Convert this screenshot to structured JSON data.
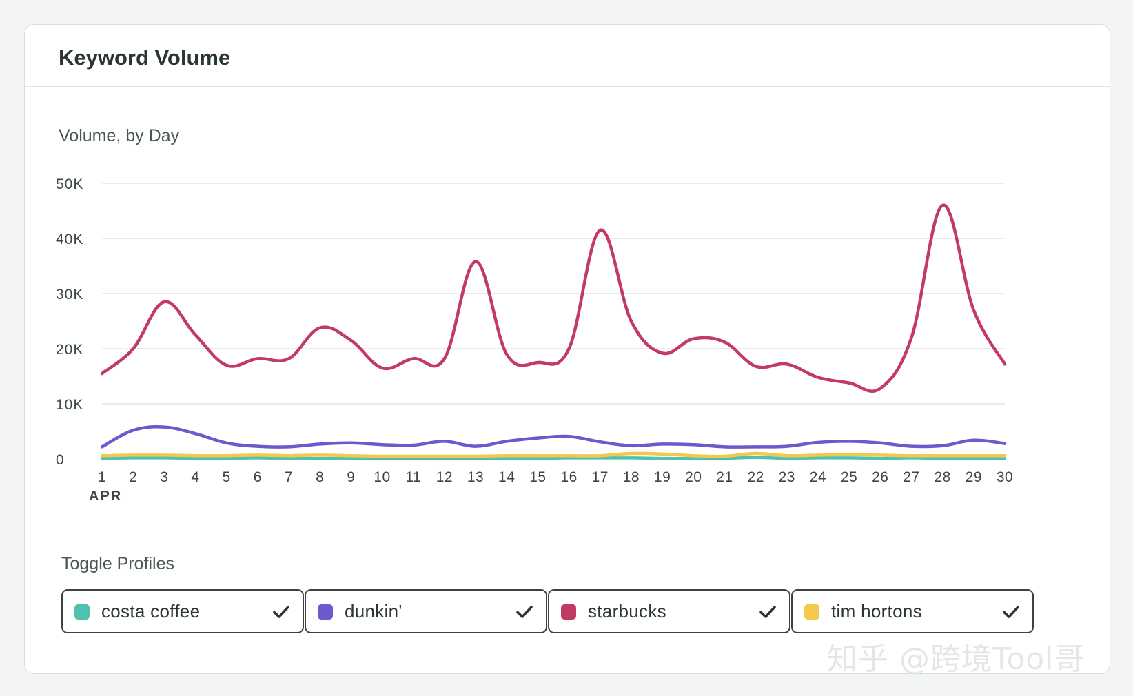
{
  "card": {
    "title": "Keyword Volume"
  },
  "chart_data": {
    "type": "line",
    "subtitle": "Volume, by Day",
    "x": [
      1,
      2,
      3,
      4,
      5,
      6,
      7,
      8,
      9,
      10,
      11,
      12,
      13,
      14,
      15,
      16,
      17,
      18,
      19,
      20,
      21,
      22,
      23,
      24,
      25,
      26,
      27,
      28,
      29,
      30
    ],
    "x_tick_labels": [
      "1",
      "2",
      "3",
      "4",
      "5",
      "6",
      "7",
      "8",
      "9",
      "10",
      "11",
      "12",
      "13",
      "14",
      "15",
      "16",
      "17",
      "18",
      "19",
      "20",
      "21",
      "22",
      "23",
      "24",
      "25",
      "26",
      "27",
      "28",
      "29",
      "30"
    ],
    "x_month_label": "APR",
    "y_ticks": [
      0,
      10000,
      20000,
      30000,
      40000,
      50000
    ],
    "y_tick_labels": [
      "0",
      "10K",
      "20K",
      "30K",
      "40K",
      "50K"
    ],
    "ylim": [
      0,
      50000
    ],
    "grid": true,
    "series": [
      {
        "name": "starbucks",
        "color": "#c23b63",
        "values": [
          15500,
          20000,
          28500,
          22500,
          17000,
          18200,
          18200,
          23800,
          21500,
          16500,
          18200,
          18200,
          35800,
          19000,
          17500,
          20000,
          41500,
          25000,
          19200,
          21800,
          21200,
          16800,
          17200,
          14800,
          13800,
          12800,
          22000,
          46000,
          27000,
          17200
        ]
      },
      {
        "name": "dunkin'",
        "color": "#6a5acd",
        "values": [
          2200,
          5200,
          5800,
          4600,
          2900,
          2300,
          2200,
          2700,
          2900,
          2600,
          2500,
          3200,
          2300,
          3200,
          3800,
          4100,
          3100,
          2400,
          2700,
          2600,
          2200,
          2200,
          2300,
          3000,
          3200,
          2900,
          2300,
          2400,
          3400,
          2800
        ]
      },
      {
        "name": "tim hortons",
        "color": "#f2c94c",
        "values": [
          600,
          700,
          700,
          600,
          600,
          700,
          600,
          700,
          600,
          500,
          500,
          500,
          500,
          600,
          600,
          600,
          600,
          1000,
          900,
          600,
          500,
          1000,
          600,
          700,
          800,
          700,
          600,
          600,
          600,
          600
        ]
      },
      {
        "name": "costa coffee",
        "color": "#4fc1b0",
        "values": [
          100,
          200,
          200,
          100,
          100,
          200,
          100,
          100,
          100,
          100,
          100,
          100,
          100,
          100,
          100,
          200,
          200,
          200,
          100,
          100,
          100,
          300,
          100,
          200,
          200,
          100,
          200,
          100,
          100,
          100
        ]
      }
    ]
  },
  "toggles": {
    "heading": "Toggle Profiles",
    "items": [
      {
        "label": "costa coffee",
        "color": "#4fc1b0",
        "checked": true
      },
      {
        "label": "dunkin'",
        "color": "#6a5acd",
        "checked": true
      },
      {
        "label": "starbucks",
        "color": "#c23b63",
        "checked": true
      },
      {
        "label": "tim hortons",
        "color": "#f2c94c",
        "checked": true
      }
    ]
  },
  "watermark": "知乎 @跨境Tool哥"
}
